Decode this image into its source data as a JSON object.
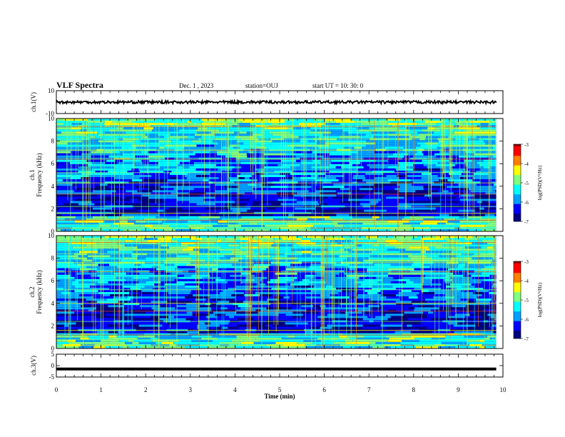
{
  "header": {
    "title": "VLF Spectra",
    "date": "Dec. 1 , 2023",
    "station": "station=OUJ",
    "start_ut": "start UT = 10: 30: 0"
  },
  "colors": {
    "spectrogram_scale": [
      "#00007f",
      "#0000ff",
      "#00a0ff",
      "#00ffff",
      "#7fff7f",
      "#ffff00",
      "#ff7f00",
      "#ff0000",
      "#7f0000"
    ]
  },
  "chart_data": [
    {
      "type": "line",
      "panel": "ch1-waveform",
      "ylabel": "ch.1(V)",
      "ylim": [
        -10,
        10
      ],
      "y_ticks": [
        "10",
        "-10"
      ],
      "x": [
        0,
        10
      ],
      "series": [
        {
          "values_description_free": true,
          "mean": 0,
          "amplitude": 1.2
        }
      ]
    },
    {
      "type": "heatmap",
      "panel": "ch1-spectrogram",
      "ylabel_lines": [
        "ch.1",
        "Frequency (kHz)"
      ],
      "ylim": [
        0,
        10
      ],
      "y_ticks": [
        "0",
        "2",
        "4",
        "6",
        "8",
        "10"
      ],
      "xlim": [
        0,
        10
      ],
      "colorbar": {
        "label": "log(PSD)(V²/Hz)",
        "range": [
          -7,
          -3
        ],
        "ticks": [
          "-3",
          "-4",
          "-5",
          "-6",
          "-7"
        ]
      },
      "bright_lines_khz": [
        0.3,
        0.6,
        1.0,
        1.6,
        2.2,
        3.3,
        4.3,
        5.2,
        6.4,
        7.2,
        8.2,
        9.3
      ],
      "burst_times_min": [
        0.6,
        1.0,
        1.3,
        1.5,
        2.3,
        2.7,
        4.6,
        5.8,
        6.6,
        7.3,
        9.2
      ]
    },
    {
      "type": "heatmap",
      "panel": "ch2-spectrogram",
      "ylabel_lines": [
        "ch.2",
        "Frequency (kHz)"
      ],
      "ylim": [
        0,
        10
      ],
      "y_ticks": [
        "0",
        "2",
        "4",
        "6",
        "8",
        "10"
      ],
      "xlim": [
        0,
        10
      ],
      "colorbar": {
        "label": "log(PSD)(V²/Hz)",
        "range": [
          -7,
          -3
        ],
        "ticks": [
          "-3",
          "-4",
          "-5",
          "-6",
          "-7"
        ]
      },
      "bright_lines_khz": [
        0.3,
        0.8,
        1.2,
        1.6,
        2.4,
        3.3,
        4.0,
        5.2,
        6.8,
        7.6,
        8.4,
        9.4
      ],
      "burst_times_min": [
        0.6,
        1.0,
        1.3,
        1.5,
        2.3,
        2.7,
        4.6,
        5.8,
        6.6,
        7.3,
        9.2
      ]
    },
    {
      "type": "line",
      "panel": "ch3-waveform",
      "ylabel": "ch.3(V)",
      "ylim": [
        -5,
        5
      ],
      "y_ticks": [
        "5",
        "0",
        "-5"
      ],
      "x": [
        0,
        9.85
      ],
      "series": [
        {
          "constant": -1.5
        }
      ]
    }
  ],
  "xaxis": {
    "label": "Time (min)",
    "ticks": [
      "0",
      "1",
      "2",
      "3",
      "4",
      "5",
      "6",
      "7",
      "8",
      "9",
      "10"
    ]
  }
}
